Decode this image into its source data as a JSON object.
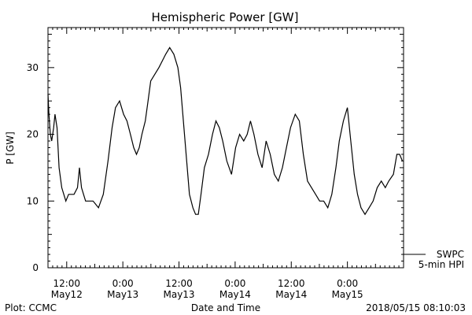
{
  "chart_data": {
    "type": "line",
    "title": "Hemispheric Power [GW]",
    "ylabel": "P [GW]",
    "xlabel": "Date and Time",
    "ylim": [
      0,
      36
    ],
    "yticks": [
      0,
      10,
      20,
      30
    ],
    "xlim": [
      "2018-05-12 08:00",
      "2018-05-15 12:00"
    ],
    "xticks": [
      {
        "time": "2018-05-12 12:00",
        "line1": "12:00",
        "line2": "May12"
      },
      {
        "time": "2018-05-13 00:00",
        "line1": "0:00",
        "line2": "May13"
      },
      {
        "time": "2018-05-13 12:00",
        "line1": "12:00",
        "line2": "May13"
      },
      {
        "time": "2018-05-14 00:00",
        "line1": "0:00",
        "line2": "May14"
      },
      {
        "time": "2018-05-14 12:00",
        "line1": "12:00",
        "line2": "May14"
      },
      {
        "time": "2018-05-15 00:00",
        "line1": "0:00",
        "line2": "May15"
      }
    ],
    "legend": {
      "line1": "SWPC",
      "line2": "5-min HPI",
      "placement": "bottom-right, outside plot"
    },
    "series": [
      {
        "name": "SWPC 5-min HPI",
        "color": "#000000",
        "x": [
          "2018-05-12 08:00",
          "2018-05-12 08:12",
          "2018-05-12 08:30",
          "2018-05-12 08:47",
          "2018-05-12 09:13",
          "2018-05-12 09:30",
          "2018-05-12 09:56",
          "2018-05-12 10:22",
          "2018-05-12 10:57",
          "2018-05-12 11:23",
          "2018-05-12 11:49",
          "2018-05-12 12:24",
          "2018-05-12 12:59",
          "2018-05-12 13:34",
          "2018-05-12 14:18",
          "2018-05-12 14:44",
          "2018-05-12 15:10",
          "2018-05-12 15:36",
          "2018-05-12 16:02",
          "2018-05-12 16:37",
          "2018-05-12 17:38",
          "2018-05-12 18:48",
          "2018-05-12 19:49",
          "2018-05-12 20:50",
          "2018-05-12 21:42",
          "2018-05-12 22:26",
          "2018-05-12 23:18",
          "2018-05-13 00:10",
          "2018-05-13 00:53",
          "2018-05-13 01:37",
          "2018-05-13 02:20",
          "2018-05-13 02:55",
          "2018-05-13 03:30",
          "2018-05-13 04:05",
          "2018-05-13 04:48",
          "2018-05-13 05:23",
          "2018-05-13 05:58",
          "2018-05-13 06:50",
          "2018-05-13 07:42",
          "2018-05-13 08:26",
          "2018-05-13 09:09",
          "2018-05-13 10:01",
          "2018-05-13 10:54",
          "2018-05-13 11:46",
          "2018-05-13 12:21",
          "2018-05-13 12:56",
          "2018-05-13 13:39",
          "2018-05-13 14:14",
          "2018-05-13 14:58",
          "2018-05-13 15:33",
          "2018-05-13 16:08",
          "2018-05-13 16:42",
          "2018-05-13 17:26",
          "2018-05-13 18:18",
          "2018-05-13 19:10",
          "2018-05-13 19:54",
          "2018-05-13 20:37",
          "2018-05-13 21:21",
          "2018-05-13 22:13",
          "2018-05-13 23:14",
          "2018-05-14 00:06",
          "2018-05-14 00:58",
          "2018-05-14 01:50",
          "2018-05-14 02:34",
          "2018-05-14 03:17",
          "2018-05-14 04:01",
          "2018-05-14 04:53",
          "2018-05-14 05:46",
          "2018-05-14 06:38",
          "2018-05-14 07:30",
          "2018-05-14 08:22",
          "2018-05-14 09:14",
          "2018-05-14 10:06",
          "2018-05-14 10:58",
          "2018-05-14 11:50",
          "2018-05-14 12:51",
          "2018-05-14 13:43",
          "2018-05-14 14:35",
          "2018-05-14 15:28",
          "2018-05-14 16:20",
          "2018-05-14 17:12",
          "2018-05-14 18:04",
          "2018-05-14 18:56",
          "2018-05-14 19:48",
          "2018-05-14 20:40",
          "2018-05-14 21:32",
          "2018-05-14 22:16",
          "2018-05-14 23:08",
          "2018-05-15 00:00",
          "2018-05-15 00:43",
          "2018-05-15 01:27",
          "2018-05-15 02:10",
          "2018-05-15 02:54",
          "2018-05-15 03:46",
          "2018-05-15 04:38",
          "2018-05-15 05:30",
          "2018-05-15 06:22",
          "2018-05-15 07:14",
          "2018-05-15 08:06",
          "2018-05-15 08:50",
          "2018-05-15 09:50",
          "2018-05-15 10:34",
          "2018-05-15 11:10",
          "2018-05-15 11:45"
        ],
        "y": [
          26,
          23,
          20,
          19,
          21,
          23,
          21,
          15,
          12,
          11,
          10,
          11,
          11,
          11,
          12,
          15,
          12,
          11,
          10,
          10,
          10,
          9,
          11,
          16,
          21,
          24,
          25,
          23,
          22,
          20,
          18,
          17,
          18,
          20,
          22,
          25,
          28,
          29,
          30,
          31,
          32,
          33,
          32,
          30,
          27,
          22,
          16,
          11,
          9,
          8,
          8,
          11,
          15,
          17,
          20,
          22,
          21,
          19,
          16,
          14,
          18,
          20,
          19,
          20,
          22,
          20,
          17,
          15,
          19,
          17,
          14,
          13,
          15,
          18,
          21,
          23,
          22,
          17,
          13,
          12,
          11,
          10,
          10,
          9,
          11,
          15,
          19,
          22,
          24,
          19,
          14,
          11,
          9,
          8,
          9,
          10,
          12,
          13,
          12,
          13,
          14,
          17,
          17,
          16
        ]
      }
    ]
  },
  "footer": {
    "left": "Plot: CCMC",
    "right": "2018/05/15 08:10:03"
  }
}
